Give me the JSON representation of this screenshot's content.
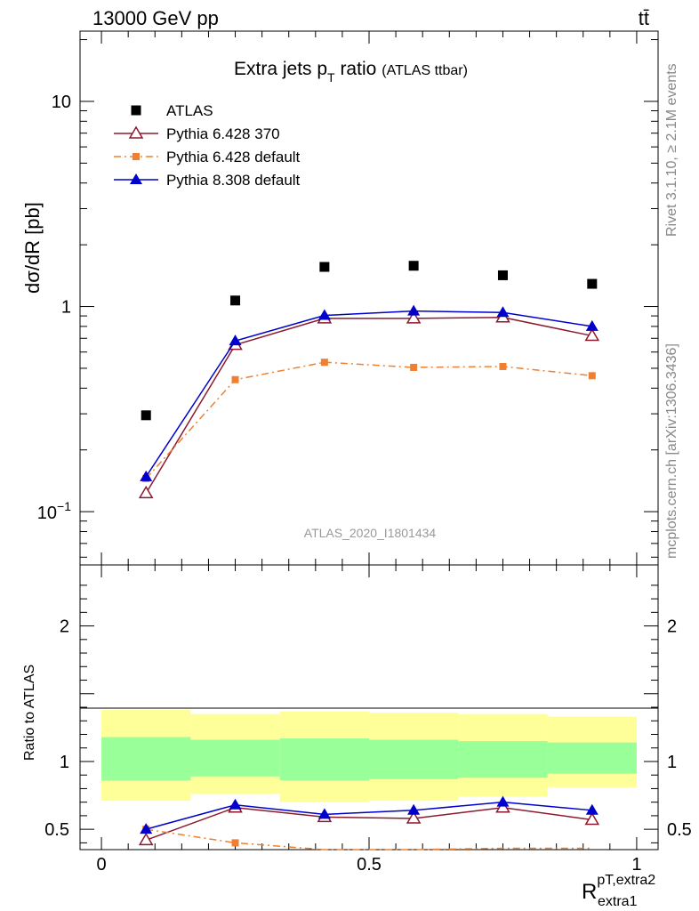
{
  "header": {
    "left": "13000 GeV pp",
    "right": "tt̄"
  },
  "side_text": {
    "rivet": "Rivet 3.1.10, ≥ 2.1M events",
    "mcplots": "mcplots.cern.ch [arXiv:1306.3436]"
  },
  "chart_data": [
    {
      "type": "scatter",
      "title": "Extra jets p",
      "title_sub": "T",
      "title_rest": " ratio",
      "title_small": "(ATLAS ttbar)",
      "analysis_tag": "ATLAS_2020_I1801434",
      "ylabel": "dσ/dR [pb]",
      "yscale": "log",
      "ylim": [
        0.055,
        22
      ],
      "xlim": [
        -0.04,
        1.04
      ],
      "y_ticks": [
        {
          "value": 0.1,
          "label": "10−1"
        },
        {
          "value": 1,
          "label": "1"
        },
        {
          "value": 10,
          "label": "10"
        }
      ],
      "x": [
        0.0833,
        0.25,
        0.4167,
        0.5833,
        0.75,
        0.9167
      ],
      "series": [
        {
          "name": "ATLAS",
          "color": "#000000",
          "marker": "square",
          "values": [
            0.295,
            1.07,
            1.56,
            1.58,
            1.42,
            1.29
          ]
        },
        {
          "name": "Pythia 6.428 370",
          "color": "#8b1a2e",
          "marker": "open-triangle",
          "line": "solid",
          "values": [
            0.123,
            0.65,
            0.875,
            0.875,
            0.885,
            0.72
          ]
        },
        {
          "name": "Pythia 6.428 default",
          "color": "#f08030",
          "marker": "small-square",
          "line": "dashdot",
          "values": [
            0.145,
            0.44,
            0.535,
            0.505,
            0.51,
            0.46
          ]
        },
        {
          "name": "Pythia 8.308 default",
          "color": "#0000cc",
          "marker": "triangle",
          "line": "solid",
          "values": [
            0.148,
            0.68,
            0.905,
            0.95,
            0.935,
            0.8
          ]
        }
      ]
    },
    {
      "type": "line",
      "ylabel": "Ratio to ATLAS",
      "xlabel": "R",
      "xlabel_sup": "pT,extra2",
      "xlabel_sub": "extra1",
      "ylim": [
        0.35,
        2.45
      ],
      "xlim": [
        -0.04,
        1.04
      ],
      "x_ticks": [
        {
          "value": 0,
          "label": "0"
        },
        {
          "value": 0.5,
          "label": "0.5"
        },
        {
          "value": 1,
          "label": "1"
        }
      ],
      "y_ticks": [
        {
          "value": 0.5,
          "label": "0.5"
        },
        {
          "value": 1,
          "label": "1"
        },
        {
          "value": 2,
          "label": "2"
        }
      ],
      "bins": [
        0,
        0.1667,
        0.3333,
        0.5,
        0.6667,
        0.8333,
        1.0
      ],
      "band_outer": {
        "color": "#ffff99",
        "lo": [
          0.71,
          0.76,
          0.7,
          0.71,
          0.74,
          0.81
        ],
        "hi": [
          1.38,
          1.35,
          1.37,
          1.36,
          1.35,
          1.33
        ]
      },
      "band_inner": {
        "color": "#99ff99",
        "lo": [
          0.86,
          0.89,
          0.86,
          0.87,
          0.88,
          0.91
        ],
        "hi": [
          1.18,
          1.16,
          1.17,
          1.16,
          1.15,
          1.14
        ]
      },
      "x": [
        0.0833,
        0.25,
        0.4167,
        0.5833,
        0.75,
        0.9167
      ],
      "series": [
        {
          "name": "Pythia 6.428 370",
          "color": "#8b1a2e",
          "values": [
            0.42,
            0.66,
            0.59,
            0.58,
            0.66,
            0.57
          ]
        },
        {
          "name": "Pythia 6.428 default",
          "color": "#f08030",
          "values": [
            0.5,
            0.4,
            0.35,
            0.32,
            0.36,
            0.36
          ]
        },
        {
          "name": "Pythia 8.308 default",
          "color": "#0000cc",
          "values": [
            0.5,
            0.68,
            0.61,
            0.64,
            0.7,
            0.64
          ]
        }
      ]
    }
  ]
}
